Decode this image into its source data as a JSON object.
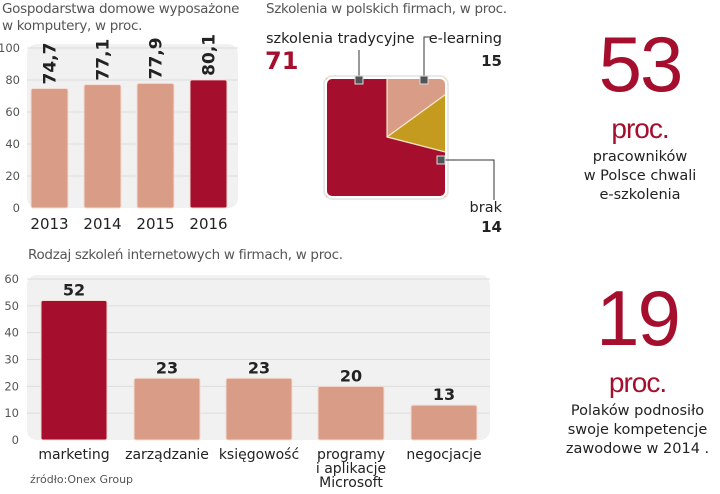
{
  "colors": {
    "accent": "#a50e2d",
    "bar": "#d89c87",
    "gold": "#c49a1f",
    "plot_bg": "#f1f1f1",
    "grid": "#dcdcdc",
    "marker": "#505457"
  },
  "chart_data": [
    {
      "id": "households",
      "type": "bar",
      "title": "Gospodarstwa domowe wyposażone w komputery, w proc.",
      "title_lines": [
        "Gospodarstwa domowe wyposażone",
        "w komputery, w proc."
      ],
      "categories": [
        "2013",
        "2014",
        "2015",
        "2016"
      ],
      "values": [
        74.7,
        77.1,
        77.9,
        80.1
      ],
      "value_labels": [
        "74,7",
        "77,1",
        "77,9",
        "80,1"
      ],
      "highlight_index": 3,
      "ylim": [
        0,
        100
      ],
      "yticks": [
        0,
        20,
        40,
        60,
        80,
        100
      ],
      "grid": true,
      "xlabel": "",
      "ylabel": ""
    },
    {
      "id": "trainings",
      "type": "pie",
      "title": "Szkolenia w polskich firmach, w proc.",
      "slices": [
        {
          "label": "szkolenia tradycyjne",
          "value": 71,
          "color": "#a50e2d"
        },
        {
          "label": "e-learning",
          "value": 15,
          "color": "#d89c87"
        },
        {
          "label": "brak",
          "value": 14,
          "color": "#c49a1f"
        }
      ]
    },
    {
      "id": "online_types",
      "type": "bar",
      "title": "Rodzaj szkoleń internetowych w firmach, w proc.",
      "categories": [
        "marketing",
        "zarządzanie",
        "księgowość",
        "programy i aplikacje Microsoft",
        "negocjacje"
      ],
      "category_lines": [
        [
          "marketing"
        ],
        [
          "zarządzanie"
        ],
        [
          "księgowość"
        ],
        [
          "programy",
          "i aplikacje",
          "Microsoft"
        ],
        [
          "negocjacje"
        ]
      ],
      "values": [
        52,
        23,
        23,
        20,
        13
      ],
      "value_labels": [
        "52",
        "23",
        "23",
        "20",
        "13"
      ],
      "highlight_index": 0,
      "ylim": [
        0,
        60
      ],
      "yticks": [
        0,
        10,
        20,
        30,
        40,
        50,
        60
      ],
      "grid": true,
      "xlabel": "",
      "ylabel": ""
    }
  ],
  "stats": [
    {
      "number": "53",
      "unit": "proc.",
      "description_lines": [
        "pracowników",
        "w Polsce chwali",
        "e-szkolenia"
      ]
    },
    {
      "number": "19",
      "unit": "proc.",
      "description_lines": [
        "Polaków podnosiło",
        "swoje kompetencje",
        "zawodowe w 2014 ."
      ]
    }
  ],
  "source": "źródło:Onex Group"
}
